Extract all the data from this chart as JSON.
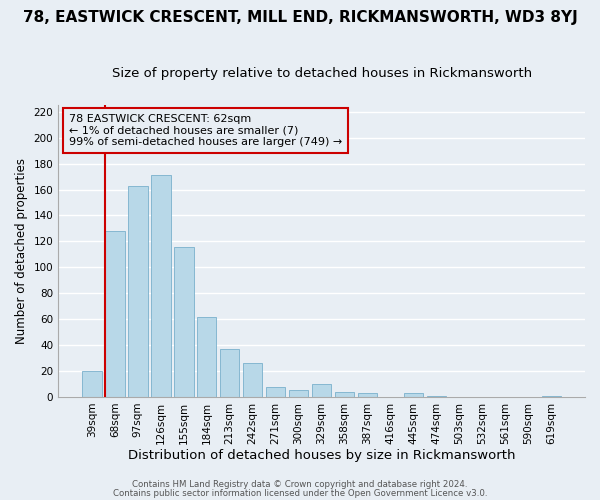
{
  "title": "78, EASTWICK CRESCENT, MILL END, RICKMANSWORTH, WD3 8YJ",
  "subtitle": "Size of property relative to detached houses in Rickmansworth",
  "xlabel": "Distribution of detached houses by size in Rickmansworth",
  "ylabel": "Number of detached properties",
  "footer_line1": "Contains HM Land Registry data © Crown copyright and database right 2024.",
  "footer_line2": "Contains public sector information licensed under the Open Government Licence v3.0.",
  "bar_labels": [
    "39sqm",
    "68sqm",
    "97sqm",
    "126sqm",
    "155sqm",
    "184sqm",
    "213sqm",
    "242sqm",
    "271sqm",
    "300sqm",
    "329sqm",
    "358sqm",
    "387sqm",
    "416sqm",
    "445sqm",
    "474sqm",
    "503sqm",
    "532sqm",
    "561sqm",
    "590sqm",
    "619sqm"
  ],
  "bar_values": [
    20,
    128,
    163,
    171,
    116,
    62,
    37,
    26,
    8,
    5,
    10,
    4,
    3,
    0,
    3,
    1,
    0,
    0,
    0,
    0,
    1
  ],
  "bar_color": "#b8d8e8",
  "bar_edge_color": "#7ab0cc",
  "highlight_edge_color": "#cc0000",
  "annotation_box_edge_color": "#cc0000",
  "annotation_title": "78 EASTWICK CRESCENT: 62sqm",
  "annotation_line1": "← 1% of detached houses are smaller (7)",
  "annotation_line2": "99% of semi-detached houses are larger (749) →",
  "red_line_bar_index": 1,
  "ylim": [
    0,
    225
  ],
  "yticks": [
    0,
    20,
    40,
    60,
    80,
    100,
    120,
    140,
    160,
    180,
    200,
    220
  ],
  "background_color": "#e8eef4",
  "plot_bg_color": "#e8eef4",
  "grid_color": "#ffffff",
  "title_fontsize": 11,
  "subtitle_fontsize": 9.5,
  "xlabel_fontsize": 9.5,
  "ylabel_fontsize": 8.5,
  "tick_fontsize": 7.5,
  "annotation_fontsize": 8,
  "footer_fontsize": 6.2
}
